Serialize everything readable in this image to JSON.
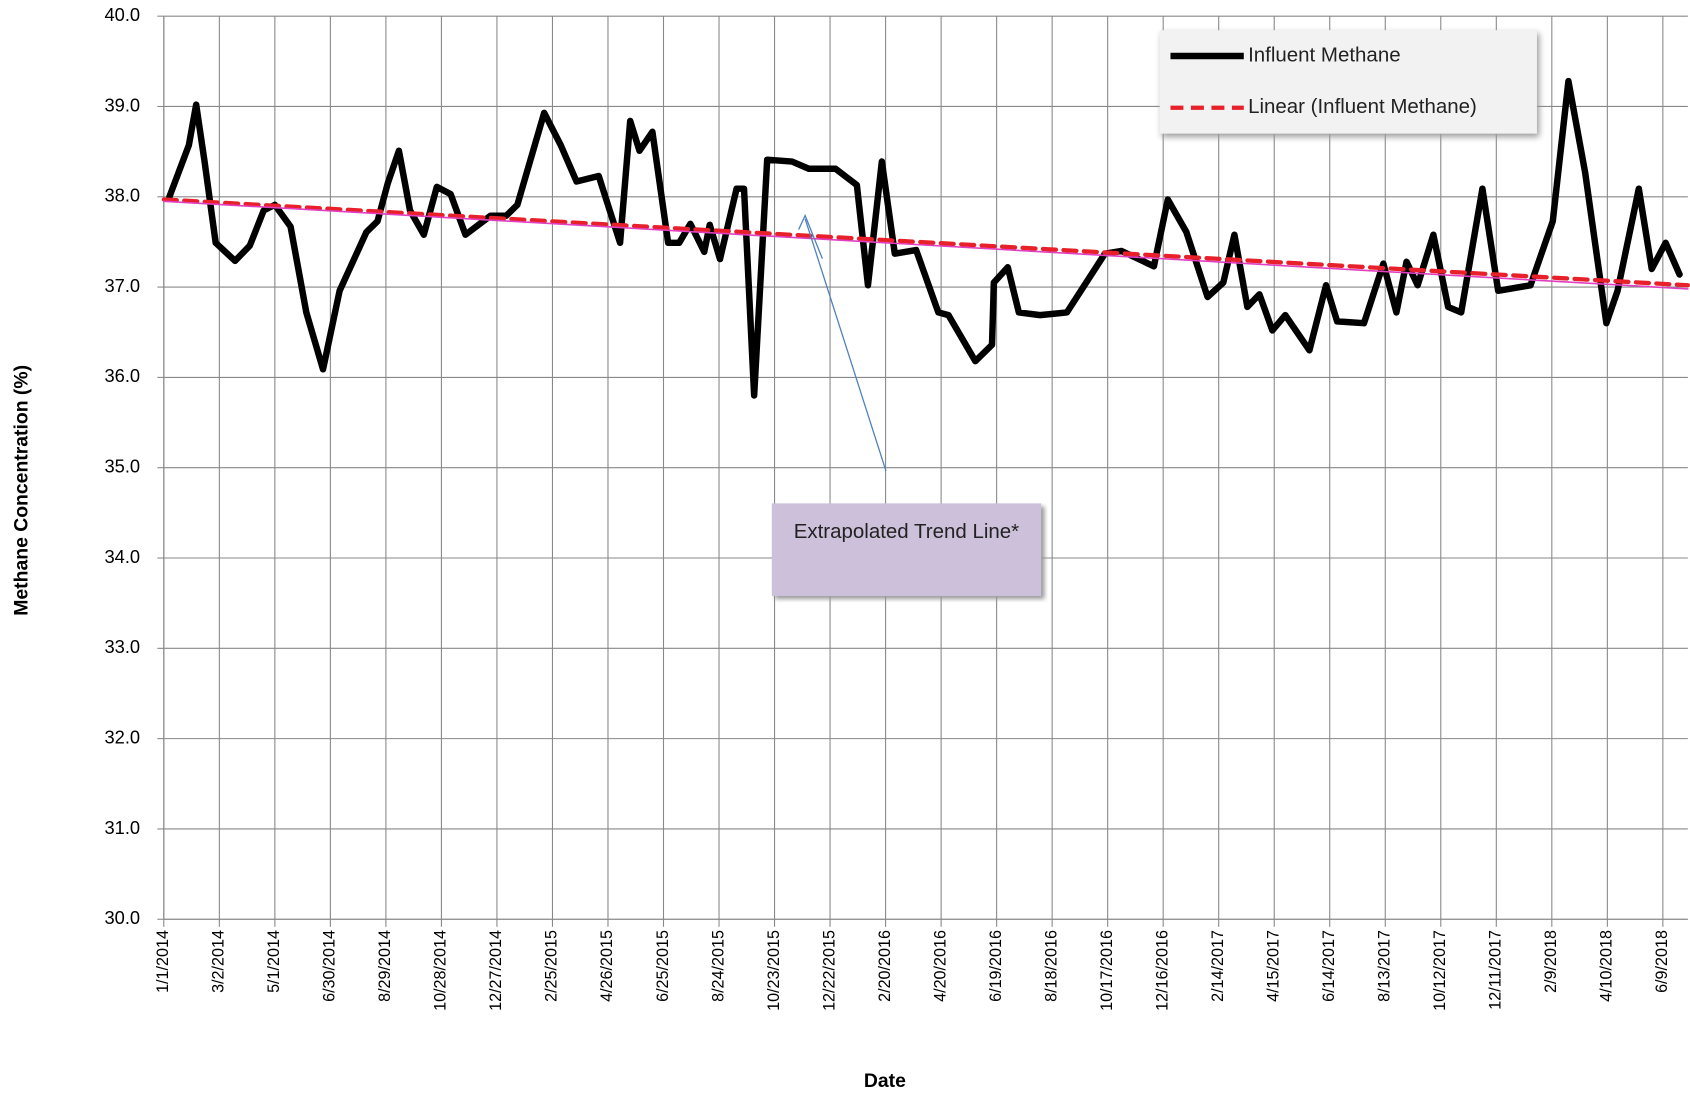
{
  "chart_data": {
    "type": "line",
    "x_label": "Date",
    "y_label": "Methane Concentration (%)",
    "annotation": "Extrapolated Trend Line*",
    "x": [
      "1/7/2014",
      "1/28/2014",
      "2/5/2014",
      "2/14/2014",
      "2/26/2014",
      "3/19/2014",
      "4/4/2014",
      "4/19/2014",
      "5/1/2014",
      "5/18/2014",
      "6/4/2014",
      "6/22/2014",
      "7/10/2014",
      "8/8/2014",
      "8/20/2014",
      "8/31/2014",
      "9/12/2014",
      "9/24/2014",
      "10/9/2014",
      "10/23/2014",
      "11/7/2014",
      "11/23/2014",
      "12/20/2014",
      "1/6/2015",
      "1/18/2015",
      "2/16/2015",
      "3/6/2015",
      "3/23/2015",
      "4/16/2015",
      "5/9/2015",
      "5/20/2015",
      "5/30/2015",
      "6/13/2015",
      "6/30/2015",
      "7/12/2015",
      "7/24/2015",
      "8/8/2015",
      "8/14/2015",
      "8/25/2015",
      "9/12/2015",
      "9/20/2015",
      "10/1/2015",
      "10/15/2015",
      "11/11/2015",
      "11/29/2015",
      "12/28/2015",
      "1/20/2016",
      "2/1/2016",
      "2/16/2016",
      "3/1/2016",
      "3/24/2016",
      "4/17/2016",
      "4/28/2016",
      "5/27/2016",
      "6/14/2016",
      "6/16/2016",
      "7/1/2016",
      "7/13/2016",
      "8/5/2016",
      "9/3/2016",
      "10/14/2016",
      "11/1/2016",
      "12/6/2016",
      "12/21/2016",
      "1/10/2017",
      "2/2/2017",
      "2/19/2017",
      "3/3/2017",
      "3/17/2017",
      "3/30/2017",
      "4/13/2017",
      "4/27/2017",
      "5/23/2017",
      "6/10/2017",
      "6/22/2017",
      "7/21/2017",
      "8/11/2017",
      "8/25/2017",
      "9/5/2017",
      "9/17/2017",
      "10/4/2017",
      "10/20/2017",
      "11/3/2017",
      "11/26/2017",
      "12/13/2017",
      "1/17/2018",
      "2/10/2018",
      "2/27/2018",
      "3/17/2018",
      "4/9/2018",
      "4/21/2018",
      "5/14/2018",
      "5/28/2018",
      "6/12/2018",
      "6/27/2018"
    ],
    "series": [
      {
        "name": "Influent Methane",
        "color": "#000000",
        "width": 6,
        "values": [
          38.0,
          38.57,
          39.02,
          38.39,
          37.49,
          37.29,
          37.46,
          37.85,
          37.91,
          37.67,
          36.72,
          36.09,
          36.96,
          37.61,
          37.73,
          38.15,
          38.51,
          37.85,
          37.58,
          38.11,
          38.03,
          37.58,
          37.79,
          37.79,
          37.91,
          38.93,
          38.57,
          38.17,
          38.23,
          37.49,
          38.84,
          38.51,
          38.72,
          37.49,
          37.49,
          37.7,
          37.39,
          37.69,
          37.31,
          38.09,
          38.09,
          35.8,
          38.41,
          38.39,
          38.31,
          38.31,
          38.13,
          37.02,
          38.39,
          37.37,
          37.41,
          36.72,
          36.69,
          36.18,
          36.36,
          37.05,
          37.22,
          36.72,
          36.69,
          36.72,
          37.37,
          37.4,
          37.23,
          37.97,
          37.61,
          36.89,
          37.05,
          37.58,
          36.78,
          36.92,
          36.52,
          36.69,
          36.3,
          37.02,
          36.62,
          36.6,
          37.26,
          36.72,
          37.28,
          37.02,
          37.58,
          36.78,
          36.72,
          38.09,
          36.96,
          37.02,
          37.73,
          39.28,
          38.27,
          36.6,
          36.96,
          38.09,
          37.2,
          37.49,
          37.14
        ]
      },
      {
        "name": "Linear (Influent Methane)",
        "color": "#e8202a",
        "width": 4,
        "dash": true,
        "x": [
          "1/1/2014",
          "7/6/2018"
        ],
        "values": [
          37.97,
          37.02
        ]
      },
      {
        "color": "#e040c0",
        "width": 1.5,
        "x": [
          "1/1/2014",
          "7/6/2018"
        ],
        "values": [
          37.95,
          36.98
        ]
      }
    ],
    "xlim": [
      "1/1/2014",
      "7/6/2018"
    ],
    "xticks": [
      "1/1/2014",
      "3/2/2014",
      "5/1/2014",
      "6/30/2014",
      "8/29/2014",
      "10/28/2014",
      "12/27/2014",
      "2/25/2015",
      "4/26/2015",
      "6/25/2015",
      "8/24/2015",
      "10/23/2015",
      "12/22/2015",
      "2/20/2016",
      "4/20/2016",
      "6/19/2016",
      "8/18/2016",
      "10/17/2016",
      "12/16/2016",
      "2/14/2017",
      "4/15/2017",
      "6/14/2017",
      "8/13/2017",
      "10/12/2017",
      "12/11/2017",
      "2/9/2018",
      "4/10/2018",
      "6/9/2018"
    ],
    "ylim": [
      30,
      40
    ],
    "yticks": [
      {
        "value": 30,
        "label": "30.0"
      },
      {
        "value": 31,
        "label": "31.0"
      },
      {
        "value": 32,
        "label": "32.0"
      },
      {
        "value": 33,
        "label": "33.0"
      },
      {
        "value": 34,
        "label": "34.0"
      },
      {
        "value": 35,
        "label": "35.0"
      },
      {
        "value": 36,
        "label": "36.0"
      },
      {
        "value": 37,
        "label": "37.0"
      },
      {
        "value": 38,
        "label": "38.0"
      },
      {
        "value": 39,
        "label": "39.0"
      },
      {
        "value": 40,
        "label": "40.0"
      }
    ],
    "grid": true,
    "legend": "top-right"
  }
}
